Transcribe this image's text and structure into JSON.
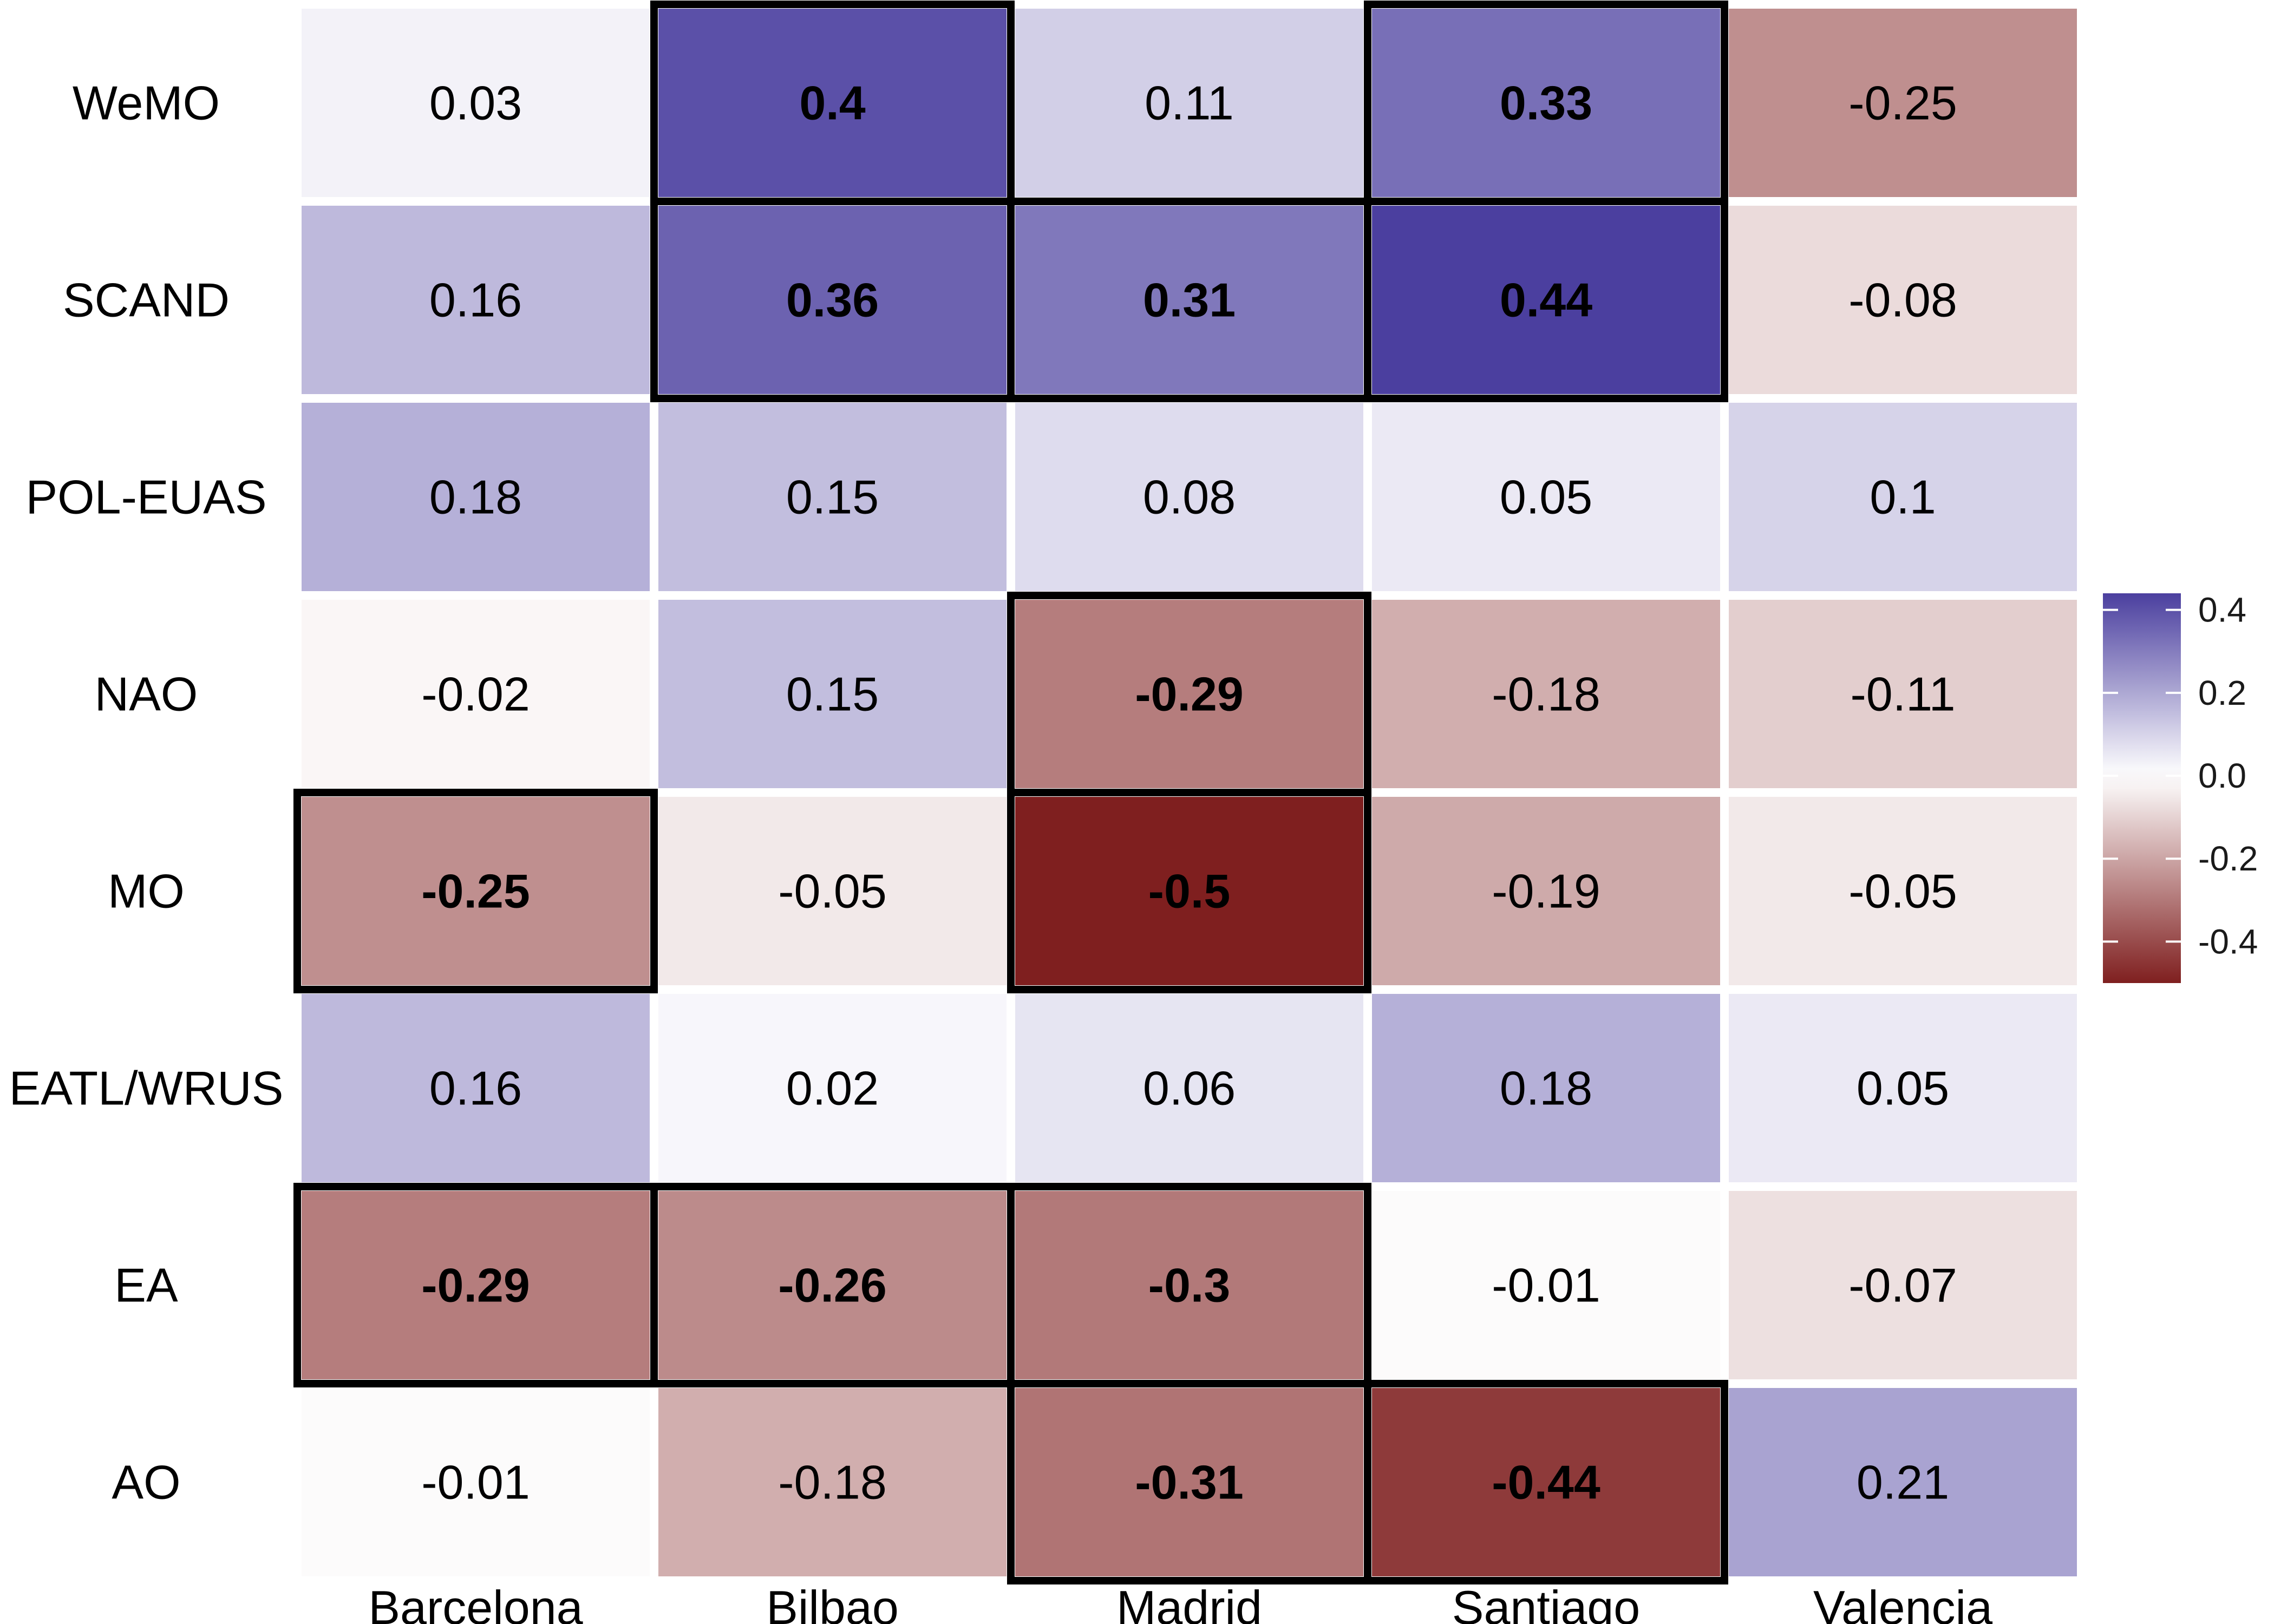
{
  "chart_data": {
    "type": "heatmap",
    "title": "",
    "xlabel": "",
    "ylabel": "",
    "rows": [
      "WeMO",
      "SCAND",
      "POL-EUAS",
      "NAO",
      "MO",
      "EATL/WRUS",
      "EA",
      "AO"
    ],
    "columns": [
      "Barcelona",
      "Bilbao",
      "Madrid",
      "Santiago",
      "Valencia"
    ],
    "values": [
      [
        0.03,
        0.4,
        0.11,
        0.33,
        -0.25
      ],
      [
        0.16,
        0.36,
        0.31,
        0.44,
        -0.08
      ],
      [
        0.18,
        0.15,
        0.08,
        0.05,
        0.1
      ],
      [
        -0.02,
        0.15,
        -0.29,
        -0.18,
        -0.11
      ],
      [
        -0.25,
        -0.05,
        -0.5,
        -0.19,
        -0.05
      ],
      [
        0.16,
        0.02,
        0.06,
        0.18,
        0.05
      ],
      [
        -0.29,
        -0.26,
        -0.3,
        -0.01,
        -0.07
      ],
      [
        -0.01,
        -0.18,
        -0.31,
        -0.44,
        0.21
      ]
    ],
    "labels": [
      [
        "0.03",
        "0.4",
        "0.11",
        "0.33",
        "-0.25"
      ],
      [
        "0.16",
        "0.36",
        "0.31",
        "0.44",
        "-0.08"
      ],
      [
        "0.18",
        "0.15",
        "0.08",
        "0.05",
        "0.1"
      ],
      [
        "-0.02",
        "0.15",
        "-0.29",
        "-0.18",
        "-0.11"
      ],
      [
        "-0.25",
        "-0.05",
        "-0.5",
        "-0.19",
        "-0.05"
      ],
      [
        "0.16",
        "0.02",
        "0.06",
        "0.18",
        "0.05"
      ],
      [
        "-0.29",
        "-0.26",
        "-0.3",
        "-0.01",
        "-0.07"
      ],
      [
        "-0.01",
        "-0.18",
        "-0.31",
        "-0.44",
        "0.21"
      ]
    ],
    "significant": [
      [
        false,
        true,
        false,
        true,
        false
      ],
      [
        false,
        true,
        true,
        true,
        false
      ],
      [
        false,
        false,
        false,
        false,
        false
      ],
      [
        false,
        false,
        true,
        false,
        false
      ],
      [
        true,
        false,
        true,
        false,
        false
      ],
      [
        false,
        false,
        false,
        false,
        false
      ],
      [
        true,
        true,
        true,
        false,
        false
      ],
      [
        false,
        false,
        true,
        true,
        false
      ]
    ],
    "color_scale": {
      "min": -0.5,
      "max": 0.44,
      "low_color": "#7f1f1f",
      "mid_color": "#ffffff",
      "high_color": "#4b3f9f",
      "legend_ticks": [
        0.4,
        0.2,
        0.0,
        -0.2,
        -0.4
      ],
      "legend_tick_labels": [
        "0.4",
        "0.2",
        "0.0",
        "-0.2",
        "-0.4"
      ]
    },
    "legend_position": "right"
  }
}
